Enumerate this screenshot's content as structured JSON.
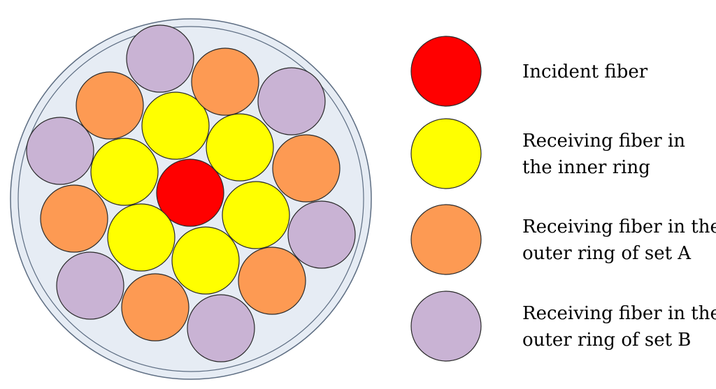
{
  "colors": {
    "sheath_fill": "#e6ecf4",
    "sheath_stroke": "#5d6d82",
    "incident": "#ff0000",
    "inner_ring": "#ffff00",
    "outer_ring_a": "#fd9a53",
    "outer_ring_b": "#c9b3d4",
    "fiber_stroke": "#2a2a2a"
  },
  "fiber_types": [
    "incident",
    "inner_ring",
    "outer_ring_a",
    "outer_ring_b"
  ],
  "fibers": [
    {
      "type": "incident"
    },
    {
      "type": "inner_ring"
    },
    {
      "type": "inner_ring"
    },
    {
      "type": "inner_ring"
    },
    {
      "type": "inner_ring"
    },
    {
      "type": "inner_ring"
    },
    {
      "type": "inner_ring"
    },
    {
      "type": "outer_ring_a"
    },
    {
      "type": "outer_ring_a"
    },
    {
      "type": "outer_ring_a"
    },
    {
      "type": "outer_ring_a"
    },
    {
      "type": "outer_ring_a"
    },
    {
      "type": "outer_ring_a"
    },
    {
      "type": "outer_ring_b"
    },
    {
      "type": "outer_ring_b"
    },
    {
      "type": "outer_ring_b"
    },
    {
      "type": "outer_ring_b"
    },
    {
      "type": "outer_ring_b"
    },
    {
      "type": "outer_ring_b"
    }
  ],
  "legend": [
    {
      "type": "incident",
      "lines": [
        "Incident fiber"
      ]
    },
    {
      "type": "inner_ring",
      "lines": [
        "Receiving fiber in",
        "the inner ring"
      ]
    },
    {
      "type": "outer_ring_a",
      "lines": [
        "Receiving fiber in the",
        "outer ring of set A"
      ]
    },
    {
      "type": "outer_ring_b",
      "lines": [
        "Receiving fiber in the",
        "outer ring of set B"
      ]
    }
  ]
}
